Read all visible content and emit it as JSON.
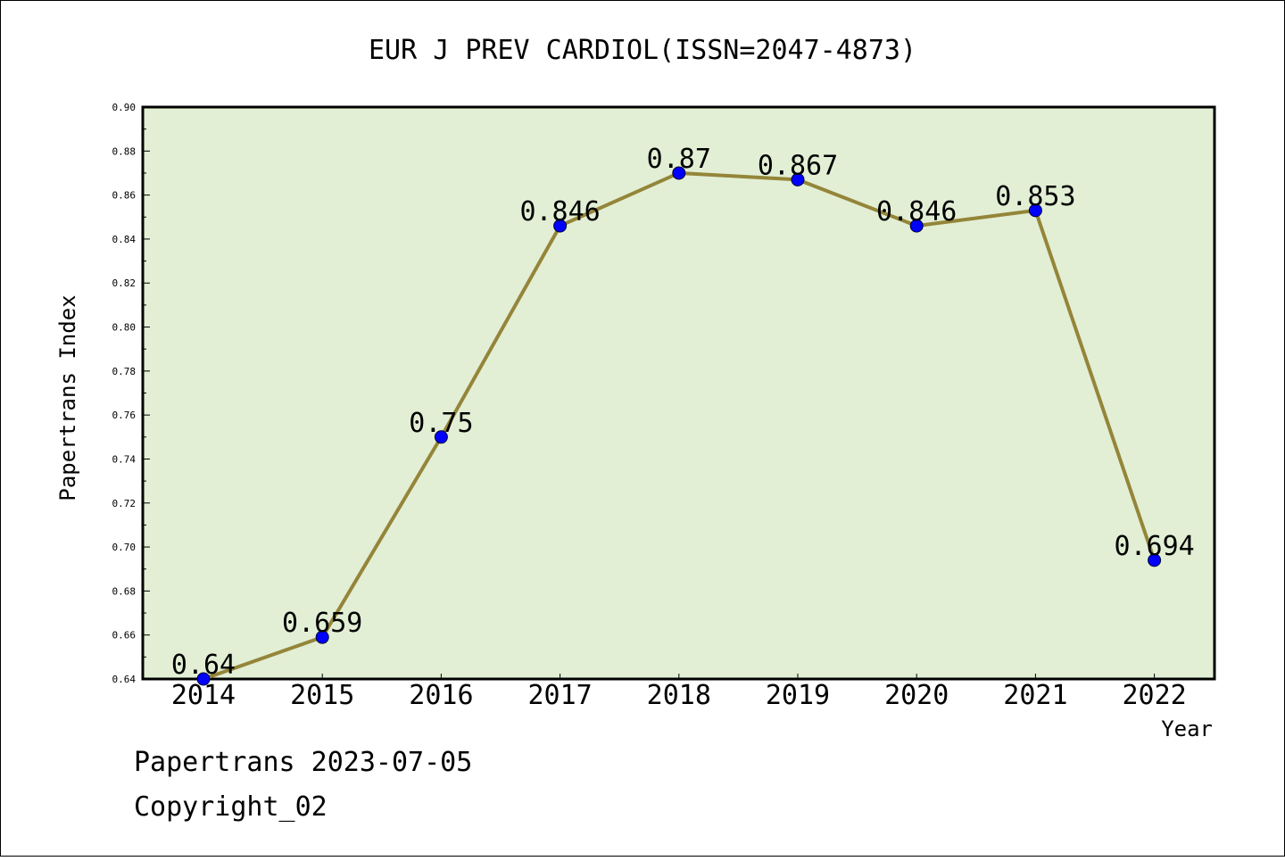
{
  "chart_data": {
    "type": "line",
    "title": "EUR J PREV CARDIOL(ISSN=2047-4873)",
    "xlabel": "Year",
    "ylabel": "Papertrans Index",
    "x": [
      "2014",
      "2015",
      "2016",
      "2017",
      "2018",
      "2019",
      "2020",
      "2021",
      "2022"
    ],
    "values": [
      0.64,
      0.659,
      0.75,
      0.846,
      0.87,
      0.867,
      0.846,
      0.853,
      0.694
    ],
    "data_labels": [
      "0.64",
      "0.659",
      "0.75",
      "0.846",
      "0.87",
      "0.867",
      "0.846",
      "0.853",
      "0.694"
    ],
    "ylim": [
      0.64,
      0.9
    ],
    "yticks": [
      "0.64",
      "0.66",
      "0.68",
      "0.70",
      "0.72",
      "0.74",
      "0.76",
      "0.78",
      "0.80",
      "0.82",
      "0.84",
      "0.86",
      "0.88",
      "0.90"
    ],
    "grid": false,
    "colors": {
      "plot_background": "#e2efd5",
      "line": "#948539",
      "marker": "#0000ff"
    }
  },
  "footer": {
    "date_line": "Papertrans 2023-07-05",
    "copyright": "Copyright_02"
  }
}
